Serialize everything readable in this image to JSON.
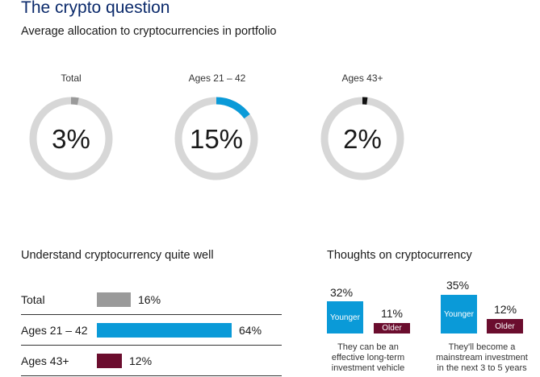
{
  "title": "The crypto question",
  "colors": {
    "title": "#0b2a6b",
    "ring_track": "#d7d7d7",
    "total": "#9a9a9a",
    "young": "#0a9ad8",
    "older_accent": "#111111",
    "older": "#6b0d2e"
  },
  "chart_data": [
    {
      "type": "pie",
      "subtitle": "Average allocation to cryptocurrencies in portfolio",
      "donuts": [
        {
          "label": "Total",
          "value": 3,
          "display": "3%",
          "color": "#9a9a9a"
        },
        {
          "label": "Ages 21 – 42",
          "value": 15,
          "display": "15%",
          "color": "#0a9ad8"
        },
        {
          "label": "Ages 43+",
          "value": 2,
          "display": "2%",
          "color": "#111111"
        }
      ]
    },
    {
      "type": "bar",
      "title": "Understand cryptocurrency quite well",
      "categories": [
        "Total",
        "Ages 21 – 42",
        "Ages 43+"
      ],
      "values": [
        16,
        64,
        12
      ],
      "labels": [
        "16%",
        "64%",
        "12%"
      ],
      "colors": [
        "#9a9a9a",
        "#0a9ad8",
        "#6b0d2e"
      ]
    },
    {
      "type": "bar",
      "title": "Thoughts on cryptocurrency",
      "groups": [
        {
          "caption": [
            "They can be an",
            "effective long-term",
            "investment vehicle"
          ],
          "younger": {
            "label": "Younger",
            "value": 32,
            "display": "32%"
          },
          "older": {
            "label": "Older",
            "value": 11,
            "display": "11%"
          }
        },
        {
          "caption": [
            "They'll become a",
            "mainstream investment",
            "in the next 3 to 5 years"
          ],
          "younger": {
            "label": "Younger",
            "value": 35,
            "display": "35%"
          },
          "older": {
            "label": "Older",
            "value": 12,
            "display": "12%"
          }
        }
      ]
    }
  ]
}
